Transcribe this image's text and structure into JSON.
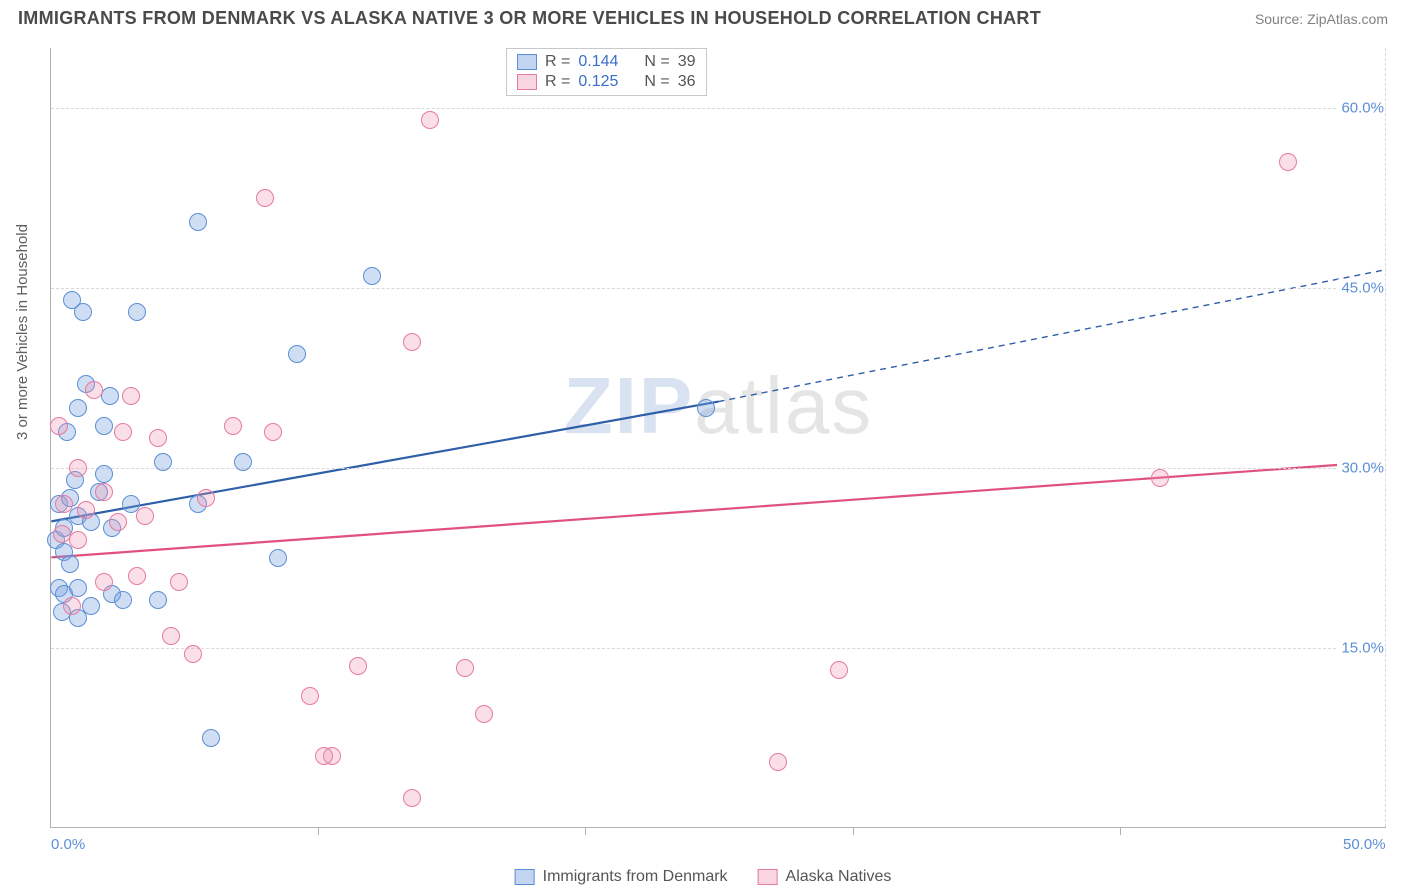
{
  "title": "IMMIGRANTS FROM DENMARK VS ALASKA NATIVE 3 OR MORE VEHICLES IN HOUSEHOLD CORRELATION CHART",
  "source_prefix": "Source: ",
  "source_link": "ZipAtlas.com",
  "ylabel": "3 or more Vehicles in Household",
  "watermark": {
    "z": "ZIP",
    "rest": "atlas"
  },
  "chart": {
    "type": "scatter",
    "xlim": [
      0,
      50
    ],
    "ylim": [
      0,
      65
    ],
    "x_ticks_minor": [
      10,
      20,
      30,
      40
    ],
    "x_labels": [
      {
        "v": 0,
        "t": "0.0%"
      },
      {
        "v": 50,
        "t": "50.0%"
      }
    ],
    "y_gridlines": [
      15,
      30,
      45,
      60
    ],
    "y_labels": [
      {
        "v": 15,
        "t": "15.0%"
      },
      {
        "v": 30,
        "t": "30.0%"
      },
      {
        "v": 45,
        "t": "45.0%"
      },
      {
        "v": 60,
        "t": "60.0%"
      }
    ],
    "background_color": "#ffffff",
    "grid_color": "#d8d8d8",
    "marker_size": 18,
    "series": [
      {
        "name": "Immigrants from Denmark",
        "color": "#5b8fd6",
        "fill": "rgba(120,160,220,0.35)",
        "r": "0.144",
        "n": "39",
        "trend": {
          "x1": 0,
          "y1": 25.5,
          "x2": 25,
          "y2": 35.5,
          "dash_x2": 50,
          "dash_y2": 46.5,
          "color": "#2f5fa8",
          "width": 2.2
        },
        "points": [
          [
            0.2,
            24
          ],
          [
            0.3,
            27
          ],
          [
            0.3,
            20
          ],
          [
            0.4,
            18
          ],
          [
            0.5,
            25
          ],
          [
            0.5,
            23
          ],
          [
            0.5,
            19.5
          ],
          [
            0.6,
            33
          ],
          [
            0.7,
            27.5
          ],
          [
            0.7,
            22
          ],
          [
            0.8,
            44
          ],
          [
            0.9,
            29
          ],
          [
            1.0,
            35
          ],
          [
            1.0,
            26
          ],
          [
            1.0,
            20
          ],
          [
            1.0,
            17.5
          ],
          [
            1.2,
            43
          ],
          [
            1.3,
            37
          ],
          [
            1.5,
            25.5
          ],
          [
            1.5,
            18.5
          ],
          [
            1.8,
            28
          ],
          [
            2.0,
            33.5
          ],
          [
            2.0,
            29.5
          ],
          [
            2.2,
            36
          ],
          [
            2.3,
            25
          ],
          [
            2.3,
            19.5
          ],
          [
            2.7,
            19
          ],
          [
            3.0,
            27
          ],
          [
            3.2,
            43
          ],
          [
            4.0,
            19
          ],
          [
            4.2,
            30.5
          ],
          [
            5.5,
            50.5
          ],
          [
            5.5,
            27
          ],
          [
            6.0,
            7.5
          ],
          [
            7.2,
            30.5
          ],
          [
            8.5,
            22.5
          ],
          [
            9.2,
            39.5
          ],
          [
            12.0,
            46
          ],
          [
            24.5,
            35
          ]
        ]
      },
      {
        "name": "Alaska Natives",
        "color": "#e67aa0",
        "fill": "rgba(240,150,180,0.30)",
        "r": "0.125",
        "n": "36",
        "trend": {
          "x1": 0,
          "y1": 22.5,
          "x2": 50,
          "y2": 30.5,
          "color": "#e0517e",
          "width": 2.2
        },
        "points": [
          [
            0.3,
            33.5
          ],
          [
            0.4,
            24.5
          ],
          [
            0.5,
            27
          ],
          [
            0.8,
            18.5
          ],
          [
            1.0,
            30
          ],
          [
            1.0,
            24
          ],
          [
            1.3,
            26.5
          ],
          [
            1.6,
            36.5
          ],
          [
            2.0,
            28
          ],
          [
            2.0,
            20.5
          ],
          [
            2.5,
            25.5
          ],
          [
            2.7,
            33
          ],
          [
            3.0,
            36
          ],
          [
            3.2,
            21
          ],
          [
            3.5,
            26
          ],
          [
            4.0,
            32.5
          ],
          [
            4.5,
            16
          ],
          [
            4.8,
            20.5
          ],
          [
            5.3,
            14.5
          ],
          [
            5.8,
            27.5
          ],
          [
            6.8,
            33.5
          ],
          [
            8.0,
            52.5
          ],
          [
            8.3,
            33
          ],
          [
            9.7,
            11
          ],
          [
            10.5,
            6
          ],
          [
            10.2,
            6
          ],
          [
            11.5,
            13.5
          ],
          [
            13.5,
            2.5
          ],
          [
            13.5,
            40.5
          ],
          [
            14.2,
            59
          ],
          [
            15.5,
            13.3
          ],
          [
            16.2,
            9.5
          ],
          [
            27.2,
            5.5
          ],
          [
            29.5,
            13.2
          ],
          [
            41.5,
            29.2
          ],
          [
            46.3,
            55.5
          ]
        ]
      }
    ]
  },
  "legend_top_labels": {
    "r": "R =",
    "n": "N ="
  }
}
